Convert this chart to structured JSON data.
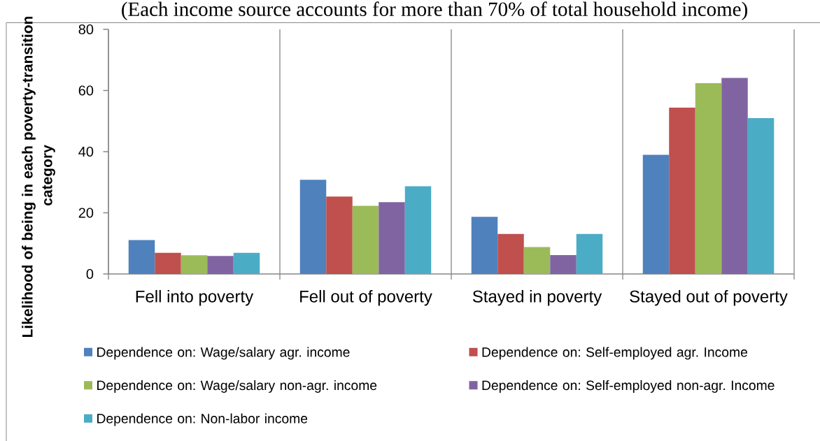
{
  "chart_data": {
    "type": "bar",
    "title": "(Each income source accounts for more than 70% of total household income)",
    "ylabel": "Likelihood of being in each poverty-transition category",
    "categories": [
      "Fell into poverty",
      "Fell out of poverty",
      "Stayed in poverty",
      "Stayed out of poverty"
    ],
    "series": [
      {
        "name": "Dependence on: Wage/salary agr. income",
        "color": "#4f81bd",
        "values": [
          11.1,
          30.8,
          18.7,
          39.0
        ]
      },
      {
        "name": "Dependence on: Self-employed agr. Income",
        "color": "#c0504d",
        "values": [
          6.9,
          25.3,
          13.1,
          54.4
        ]
      },
      {
        "name": "Dependence on: Wage/salary non-agr. income",
        "color": "#9bbb59",
        "values": [
          6.1,
          22.3,
          8.8,
          62.4
        ]
      },
      {
        "name": "Dependence on: Self-employed non-agr. Income",
        "color": "#8064a2",
        "values": [
          5.9,
          23.5,
          6.2,
          64.1
        ]
      },
      {
        "name": "Dependence on: Non-labor income",
        "color": "#4bacc6",
        "values": [
          6.9,
          28.7,
          13.1,
          51.0
        ]
      }
    ],
    "ylim": [
      0,
      80
    ],
    "yticks": [
      0,
      20,
      40,
      60,
      80
    ],
    "grid": "x",
    "legend": "bottom"
  }
}
